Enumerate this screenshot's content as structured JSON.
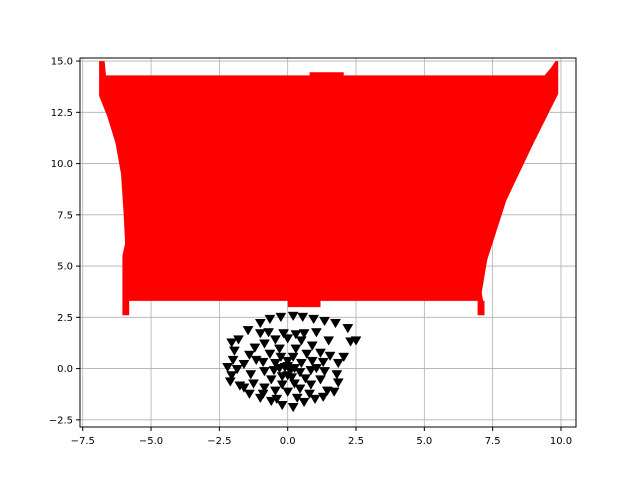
{
  "chart_data": {
    "type": "scatter",
    "title": "",
    "xlabel": "",
    "ylabel": "",
    "xlim": [
      -7.6,
      10.55
    ],
    "ylim": [
      -2.85,
      15.15
    ],
    "grid": true,
    "xticks": [
      -7.5,
      -5.0,
      -2.5,
      0.0,
      2.5,
      5.0,
      7.5,
      10.0
    ],
    "xtick_labels": [
      "−7.5",
      "−5.0",
      "−2.5",
      "0.0",
      "2.5",
      "5.0",
      "7.5",
      "10.0"
    ],
    "yticks": [
      -2.5,
      0.0,
      2.5,
      5.0,
      7.5,
      10.0,
      12.5,
      15.0
    ],
    "ytick_labels": [
      "−2.5",
      "0.0",
      "2.5",
      "5.0",
      "7.5",
      "10.0",
      "12.5",
      "15.0"
    ],
    "colors": {
      "fill": "#ff0000",
      "marker": "#000000",
      "grid": "#b0b0b0"
    },
    "series": [
      {
        "kind": "filled-area",
        "color": "#ff0000",
        "polygon": [
          [
            -6.9,
            15.0
          ],
          [
            -6.7,
            15.0
          ],
          [
            -6.65,
            14.3
          ],
          [
            0.0,
            14.3
          ],
          [
            0.8,
            14.3
          ],
          [
            0.8,
            14.45
          ],
          [
            2.05,
            14.45
          ],
          [
            2.05,
            14.3
          ],
          [
            9.4,
            14.3
          ],
          [
            9.65,
            14.7
          ],
          [
            9.8,
            15.0
          ],
          [
            9.9,
            15.0
          ],
          [
            9.9,
            13.4
          ],
          [
            9.0,
            11.0
          ],
          [
            8.0,
            8.2
          ],
          [
            7.3,
            5.3
          ],
          [
            7.1,
            3.7
          ],
          [
            7.15,
            3.3
          ],
          [
            7.2,
            3.3
          ],
          [
            7.2,
            2.6
          ],
          [
            6.95,
            2.6
          ],
          [
            6.95,
            3.3
          ],
          [
            1.2,
            3.3
          ],
          [
            1.2,
            3.0
          ],
          [
            0.0,
            3.0
          ],
          [
            0.0,
            3.3
          ],
          [
            -5.8,
            3.3
          ],
          [
            -5.8,
            2.6
          ],
          [
            -6.05,
            2.6
          ],
          [
            -6.05,
            5.5
          ],
          [
            -5.95,
            6.1
          ],
          [
            -6.0,
            7.5
          ],
          [
            -6.1,
            9.5
          ],
          [
            -6.3,
            11.0
          ],
          [
            -6.6,
            12.3
          ],
          [
            -6.9,
            13.3
          ]
        ]
      },
      {
        "kind": "scatter",
        "marker": "triangle-down",
        "color": "#000000",
        "points": [
          [
            0.2,
            2.55
          ],
          [
            0.55,
            2.5
          ],
          [
            0.95,
            2.4
          ],
          [
            1.35,
            2.3
          ],
          [
            1.75,
            2.2
          ],
          [
            2.2,
            1.95
          ],
          [
            2.5,
            1.35
          ],
          [
            2.3,
            1.3
          ],
          [
            -0.25,
            2.5
          ],
          [
            -0.65,
            2.4
          ],
          [
            -1.0,
            2.2
          ],
          [
            -1.45,
            1.85
          ],
          [
            -1.8,
            1.4
          ],
          [
            -2.05,
            1.25
          ],
          [
            -1.95,
            0.85
          ],
          [
            -2.0,
            0.4
          ],
          [
            -2.2,
            0.05
          ],
          [
            -2.05,
            -0.35
          ],
          [
            -2.1,
            -0.65
          ],
          [
            -1.75,
            -0.85
          ],
          [
            -1.4,
            -1.25
          ],
          [
            -1.0,
            -1.45
          ],
          [
            -0.6,
            -1.6
          ],
          [
            -0.2,
            -1.8
          ],
          [
            0.2,
            -1.9
          ],
          [
            0.6,
            -1.65
          ],
          [
            1.0,
            -1.5
          ],
          [
            1.3,
            -1.4
          ],
          [
            1.7,
            -1.15
          ],
          [
            1.85,
            -0.7
          ],
          [
            1.8,
            -0.3
          ],
          [
            1.85,
            0.25
          ],
          [
            2.05,
            0.55
          ],
          [
            1.5,
            1.35
          ],
          [
            -1.2,
            1.0
          ],
          [
            -1.4,
            0.65
          ],
          [
            -1.6,
            0.2
          ],
          [
            -1.35,
            -0.3
          ],
          [
            -1.25,
            -0.75
          ],
          [
            -0.85,
            -0.95
          ],
          [
            -0.45,
            -1.1
          ],
          [
            0.0,
            -1.15
          ],
          [
            0.45,
            -1.0
          ],
          [
            0.85,
            -0.8
          ],
          [
            1.2,
            -0.55
          ],
          [
            1.35,
            -0.15
          ],
          [
            1.3,
            0.3
          ],
          [
            1.2,
            0.75
          ],
          [
            0.9,
            1.1
          ],
          [
            0.5,
            1.35
          ],
          [
            0.0,
            1.45
          ],
          [
            -0.45,
            1.4
          ],
          [
            -0.85,
            1.2
          ],
          [
            -0.3,
            0.95
          ],
          [
            0.3,
            0.95
          ],
          [
            0.7,
            0.7
          ],
          [
            0.9,
            0.35
          ],
          [
            0.85,
            -0.1
          ],
          [
            0.65,
            -0.5
          ],
          [
            0.25,
            -0.75
          ],
          [
            -0.2,
            -0.8
          ],
          [
            -0.6,
            -0.55
          ],
          [
            -0.85,
            -0.15
          ],
          [
            -0.9,
            0.3
          ],
          [
            -0.65,
            0.7
          ],
          [
            -0.25,
            0.55
          ],
          [
            0.2,
            0.55
          ],
          [
            0.5,
            0.25
          ],
          [
            0.45,
            -0.2
          ],
          [
            0.15,
            -0.45
          ],
          [
            -0.2,
            -0.4
          ],
          [
            -0.5,
            -0.1
          ],
          [
            -0.45,
            0.25
          ],
          [
            0.0,
            0.1
          ],
          [
            0.1,
            -0.1
          ],
          [
            -0.1,
            0.05
          ],
          [
            0.25,
            0.0
          ],
          [
            -0.3,
            0.0
          ],
          [
            0.0,
            0.35
          ],
          [
            0.0,
            -0.35
          ],
          [
            -0.15,
            1.7
          ],
          [
            0.3,
            1.65
          ],
          [
            1.05,
            1.75
          ],
          [
            -1.0,
            1.7
          ],
          [
            -1.6,
            -0.95
          ],
          [
            1.45,
            -1.1
          ],
          [
            -0.4,
            -1.5
          ],
          [
            0.35,
            -1.45
          ],
          [
            -1.15,
            0.4
          ],
          [
            1.05,
            0.0
          ],
          [
            0.6,
            1.7
          ],
          [
            -0.7,
            1.75
          ],
          [
            -1.85,
            -0.05
          ],
          [
            1.55,
            0.6
          ],
          [
            -0.9,
            -1.25
          ],
          [
            0.8,
            -1.25
          ]
        ]
      }
    ]
  }
}
